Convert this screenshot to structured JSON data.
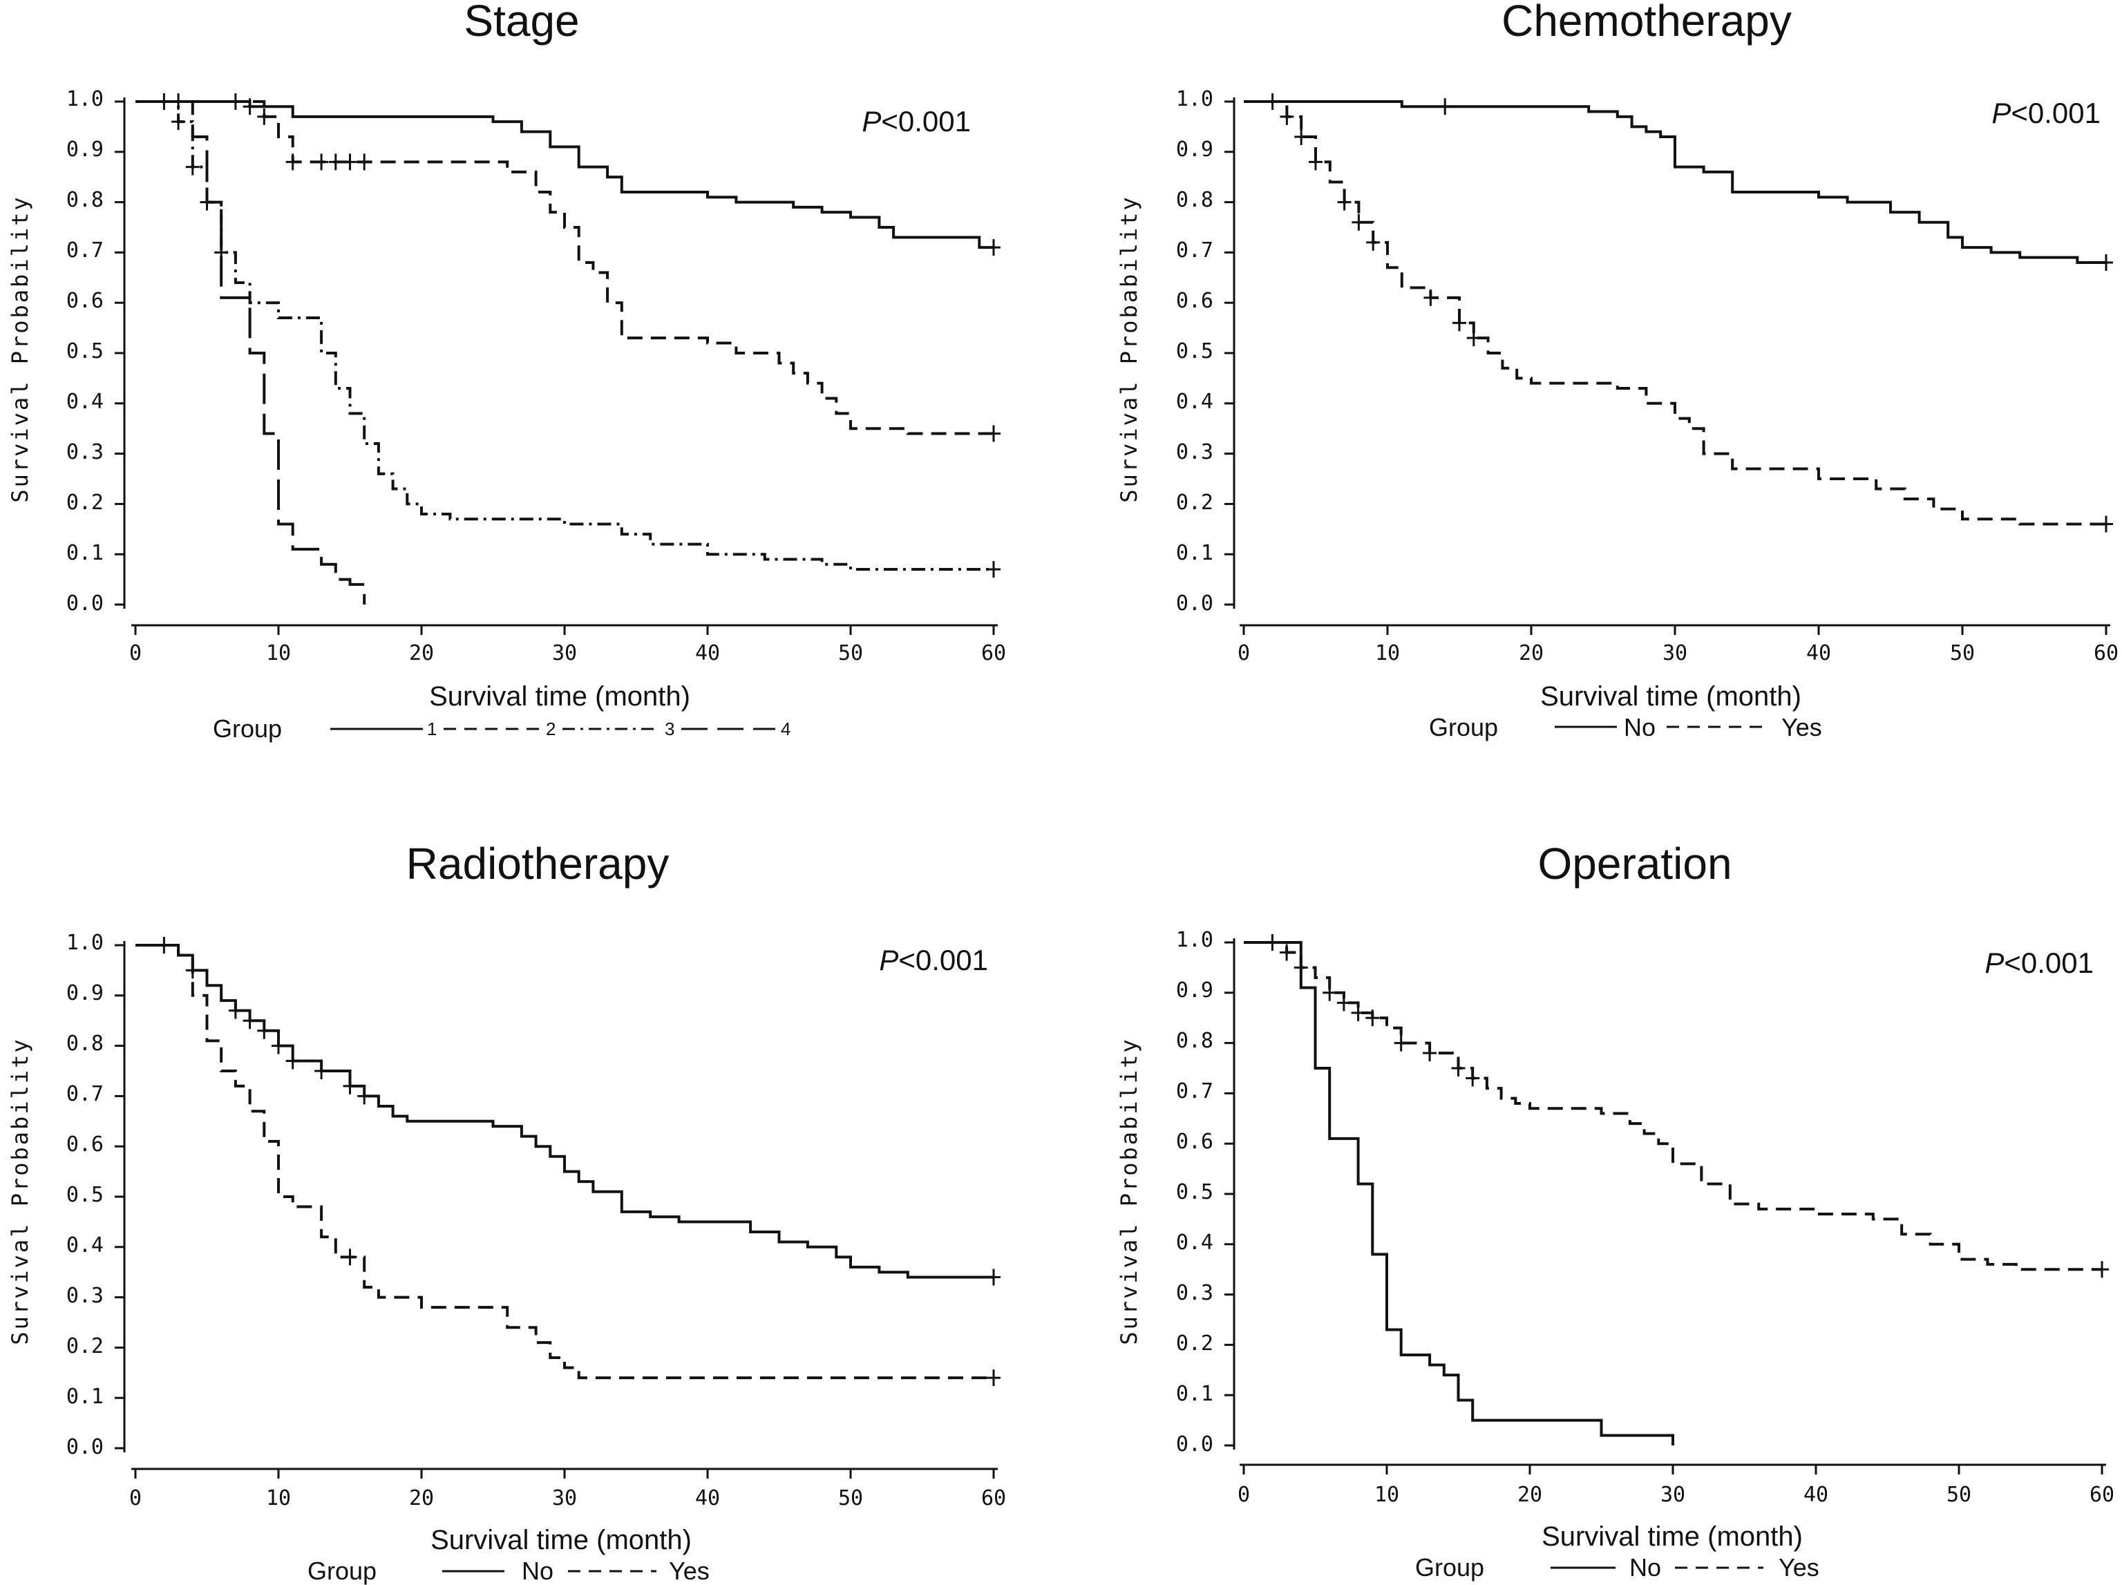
{
  "chart_data": [
    {
      "type": "line",
      "subtype": "kaplan-meier",
      "title": "Stage",
      "xlabel": "Survival time (month)",
      "ylabel": "Survival Probability",
      "xlim": [
        0,
        60
      ],
      "ylim": [
        0,
        1
      ],
      "xticks": [
        "0",
        "10",
        "20",
        "30",
        "40",
        "50",
        "60"
      ],
      "yticks": [
        "0.0",
        "0.1",
        "0.2",
        "0.3",
        "0.4",
        "0.5",
        "0.6",
        "0.7",
        "0.8",
        "0.9",
        "1.0"
      ],
      "p_value": "<0.001",
      "p_label": "P",
      "legend_title": "Group",
      "legend_style": "numbers",
      "series": [
        {
          "name": "1",
          "dash": "solid",
          "x": [
            0,
            8,
            11,
            24,
            25,
            27,
            29,
            31,
            33,
            34,
            40,
            42,
            46,
            48,
            50,
            52,
            53,
            56,
            59,
            60
          ],
          "y": [
            1.0,
            0.99,
            0.97,
            0.97,
            0.96,
            0.94,
            0.91,
            0.87,
            0.85,
            0.82,
            0.81,
            0.8,
            0.79,
            0.78,
            0.77,
            0.75,
            0.73,
            0.73,
            0.71,
            0.71
          ],
          "censor_x": [
            2,
            3,
            7,
            8,
            60
          ]
        },
        {
          "name": "2",
          "dash": "dashed",
          "x": [
            0,
            9,
            10,
            11,
            24,
            26,
            28,
            29,
            30,
            31,
            32,
            33,
            34,
            40,
            42,
            45,
            46,
            47,
            48,
            49,
            50,
            52,
            54,
            60
          ],
          "y": [
            1.0,
            0.97,
            0.93,
            0.88,
            0.88,
            0.86,
            0.82,
            0.78,
            0.75,
            0.68,
            0.66,
            0.6,
            0.53,
            0.52,
            0.5,
            0.48,
            0.46,
            0.44,
            0.41,
            0.38,
            0.35,
            0.35,
            0.34,
            0.34
          ],
          "censor_x": [
            9,
            11,
            13,
            14,
            15,
            16,
            60
          ]
        },
        {
          "name": "3",
          "dash": "dashdot",
          "x": [
            0,
            3,
            4,
            5,
            6,
            7,
            8,
            10,
            13,
            14,
            15,
            16,
            17,
            18,
            19,
            20,
            22,
            30,
            34,
            36,
            40,
            44,
            48,
            50,
            60
          ],
          "y": [
            1.0,
            0.96,
            0.87,
            0.8,
            0.7,
            0.64,
            0.6,
            0.57,
            0.5,
            0.43,
            0.38,
            0.32,
            0.26,
            0.23,
            0.2,
            0.18,
            0.17,
            0.16,
            0.14,
            0.12,
            0.1,
            0.09,
            0.08,
            0.07,
            0.07
          ],
          "censor_x": [
            3,
            4,
            5,
            6,
            60
          ]
        },
        {
          "name": "4",
          "dash": "longdash",
          "x": [
            0,
            4,
            5,
            6,
            8,
            9,
            10,
            11,
            13,
            14,
            15,
            16
          ],
          "y": [
            1.0,
            0.93,
            0.8,
            0.61,
            0.5,
            0.34,
            0.16,
            0.11,
            0.08,
            0.05,
            0.04,
            0.0
          ],
          "censor_x": []
        }
      ]
    },
    {
      "type": "line",
      "subtype": "kaplan-meier",
      "title": "Chemotherapy",
      "xlabel": "Survival time (month)",
      "ylabel": "Survival Probability",
      "xlim": [
        0,
        60
      ],
      "ylim": [
        0,
        1
      ],
      "xticks": [
        "0",
        "10",
        "20",
        "30",
        "40",
        "50",
        "60"
      ],
      "yticks": [
        "0.0",
        "0.1",
        "0.2",
        "0.3",
        "0.4",
        "0.5",
        "0.6",
        "0.7",
        "0.8",
        "0.9",
        "1.0"
      ],
      "p_value": "<0.001",
      "p_label": "P",
      "legend_title": "Group",
      "legend_style": "words",
      "series": [
        {
          "name": "No",
          "dash": "solid",
          "x": [
            0,
            11,
            24,
            26,
            27,
            28,
            29,
            30,
            32,
            34,
            40,
            42,
            45,
            47,
            49,
            50,
            52,
            54,
            58,
            60
          ],
          "y": [
            1.0,
            0.99,
            0.98,
            0.97,
            0.95,
            0.94,
            0.93,
            0.87,
            0.86,
            0.82,
            0.81,
            0.8,
            0.78,
            0.76,
            0.73,
            0.71,
            0.7,
            0.69,
            0.68,
            0.68
          ],
          "censor_x": [
            2,
            14,
            60
          ]
        },
        {
          "name": "Yes",
          "dash": "dashed",
          "x": [
            0,
            3,
            4,
            5,
            6,
            7,
            8,
            9,
            10,
            11,
            13,
            15,
            16,
            17,
            18,
            19,
            20,
            26,
            28,
            30,
            31,
            32,
            34,
            40,
            44,
            46,
            48,
            50,
            54,
            60
          ],
          "y": [
            1.0,
            0.97,
            0.93,
            0.88,
            0.84,
            0.8,
            0.76,
            0.72,
            0.67,
            0.63,
            0.61,
            0.56,
            0.53,
            0.5,
            0.47,
            0.45,
            0.44,
            0.43,
            0.4,
            0.37,
            0.35,
            0.3,
            0.27,
            0.25,
            0.23,
            0.21,
            0.19,
            0.17,
            0.16,
            0.16
          ],
          "censor_x": [
            3,
            4,
            5,
            7,
            8,
            9,
            13,
            15,
            16,
            60
          ]
        }
      ]
    },
    {
      "type": "line",
      "subtype": "kaplan-meier",
      "title": "Radiotherapy",
      "xlabel": "Survival time (month)",
      "ylabel": "Survival Probability",
      "xlim": [
        0,
        60
      ],
      "ylim": [
        0,
        1
      ],
      "xticks": [
        "0",
        "10",
        "20",
        "30",
        "40",
        "50",
        "60"
      ],
      "yticks": [
        "0.0",
        "0.1",
        "0.2",
        "0.3",
        "0.4",
        "0.5",
        "0.6",
        "0.7",
        "0.8",
        "0.9",
        "1.0"
      ],
      "p_value": "<0.001",
      "p_label": "P",
      "legend_title": "Group",
      "legend_style": "words",
      "series": [
        {
          "name": "No",
          "dash": "solid",
          "x": [
            0,
            3,
            4,
            5,
            6,
            7,
            8,
            9,
            10,
            11,
            13,
            15,
            16,
            17,
            18,
            19,
            20,
            25,
            27,
            28,
            29,
            30,
            31,
            32,
            34,
            36,
            38,
            40,
            43,
            45,
            47,
            49,
            50,
            52,
            54,
            60
          ],
          "y": [
            1.0,
            0.98,
            0.95,
            0.92,
            0.89,
            0.87,
            0.85,
            0.83,
            0.8,
            0.77,
            0.75,
            0.72,
            0.7,
            0.68,
            0.66,
            0.65,
            0.65,
            0.64,
            0.62,
            0.6,
            0.58,
            0.55,
            0.53,
            0.51,
            0.47,
            0.46,
            0.45,
            0.45,
            0.43,
            0.41,
            0.4,
            0.38,
            0.36,
            0.35,
            0.34,
            0.34
          ],
          "censor_x": [
            2,
            4,
            7,
            8,
            9,
            10,
            11,
            13,
            15,
            16,
            60
          ]
        },
        {
          "name": "Yes",
          "dash": "dashed",
          "x": [
            0,
            3,
            4,
            5,
            6,
            7,
            8,
            9,
            10,
            11,
            13,
            14,
            16,
            17,
            20,
            26,
            28,
            29,
            30,
            31,
            32,
            60
          ],
          "y": [
            1.0,
            0.98,
            0.9,
            0.81,
            0.75,
            0.72,
            0.67,
            0.61,
            0.5,
            0.48,
            0.42,
            0.38,
            0.32,
            0.3,
            0.28,
            0.24,
            0.21,
            0.18,
            0.16,
            0.14,
            0.14,
            0.14
          ],
          "censor_x": [
            15,
            60
          ]
        }
      ]
    },
    {
      "type": "line",
      "subtype": "kaplan-meier",
      "title": "Operation",
      "xlabel": "Survival time (month)",
      "ylabel": "Survival Probability",
      "xlim": [
        0,
        60
      ],
      "ylim": [
        0,
        1
      ],
      "xticks": [
        "0",
        "10",
        "20",
        "30",
        "40",
        "50",
        "60"
      ],
      "yticks": [
        "0.0",
        "0.1",
        "0.2",
        "0.3",
        "0.4",
        "0.5",
        "0.6",
        "0.7",
        "0.8",
        "0.9",
        "1.0"
      ],
      "p_value": "<0.001",
      "p_label": "P",
      "legend_title": "Group",
      "legend_style": "words",
      "series": [
        {
          "name": "No",
          "dash": "solid",
          "x": [
            0,
            4,
            5,
            6,
            8,
            9,
            10,
            11,
            13,
            14,
            15,
            16,
            25,
            30
          ],
          "y": [
            1.0,
            0.91,
            0.75,
            0.61,
            0.52,
            0.38,
            0.23,
            0.18,
            0.16,
            0.14,
            0.09,
            0.05,
            0.02,
            0.0
          ],
          "censor_x": []
        },
        {
          "name": "Yes",
          "dash": "dashed",
          "x": [
            0,
            3,
            4,
            5,
            6,
            7,
            8,
            9,
            10,
            11,
            13,
            15,
            16,
            17,
            18,
            19,
            20,
            25,
            27,
            28,
            29,
            30,
            32,
            34,
            36,
            38,
            40,
            44,
            46,
            48,
            50,
            52,
            54,
            60
          ],
          "y": [
            1.0,
            0.98,
            0.95,
            0.93,
            0.9,
            0.88,
            0.86,
            0.85,
            0.83,
            0.8,
            0.78,
            0.75,
            0.73,
            0.71,
            0.69,
            0.68,
            0.67,
            0.66,
            0.64,
            0.62,
            0.6,
            0.56,
            0.52,
            0.48,
            0.47,
            0.47,
            0.46,
            0.45,
            0.42,
            0.4,
            0.37,
            0.36,
            0.35,
            0.35
          ],
          "censor_x": [
            2,
            3,
            4,
            6,
            7,
            8,
            9,
            11,
            13,
            15,
            16,
            60
          ]
        }
      ]
    }
  ]
}
